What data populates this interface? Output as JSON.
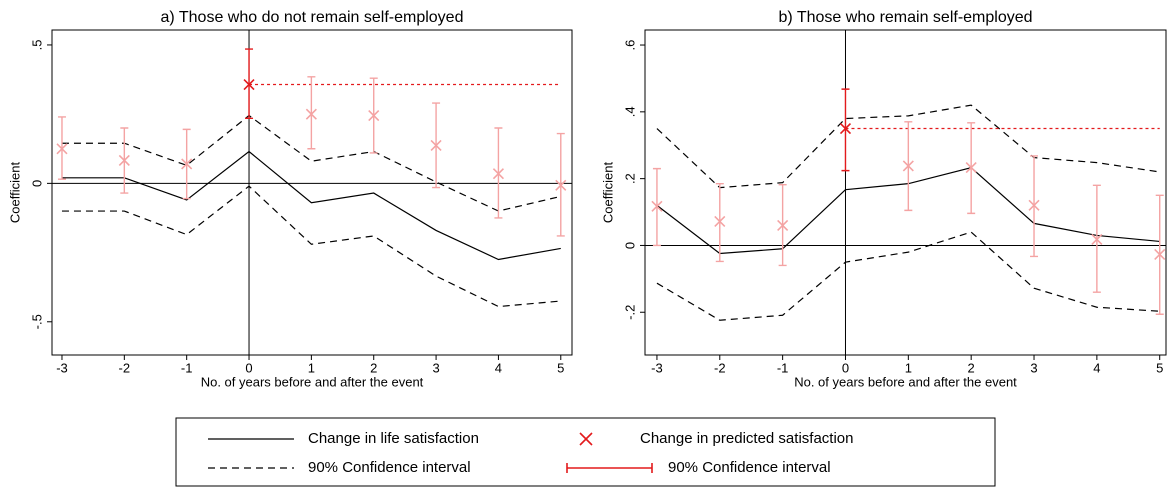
{
  "chart_data": [
    {
      "type": "line",
      "title": "a) Those who do not remain self-employed",
      "xlabel": "No. of years before and after the event",
      "ylabel": "Coefficient",
      "x": [
        -3,
        -2,
        -1,
        0,
        1,
        2,
        3,
        4,
        5
      ],
      "xlim": [
        -3.16,
        5.18
      ],
      "xticks": [
        -3,
        -2,
        -1,
        0,
        1,
        2,
        3,
        4,
        5
      ],
      "ylim": [
        -0.62,
        0.554
      ],
      "yticks": [
        {
          "value": -0.5,
          "label": "-.5"
        },
        0,
        {
          "value": 0.5,
          "label": ".5"
        }
      ],
      "reference_lines": {
        "x": 0,
        "y": 0
      },
      "life_satisfaction": {
        "color": "#000000",
        "dash": "solid",
        "values": [
          0.02,
          0.02,
          -0.06,
          0.115,
          -0.07,
          -0.035,
          -0.17,
          -0.275,
          -0.235
        ]
      },
      "ci_upper": {
        "color": "#000000",
        "dash": "dashed",
        "values": [
          0.145,
          0.145,
          0.065,
          0.245,
          0.08,
          0.115,
          0.005,
          -0.1,
          -0.047
        ]
      },
      "ci_lower": {
        "color": "#000000",
        "dash": "dashed",
        "values": [
          -0.1,
          -0.1,
          -0.185,
          -0.01,
          -0.22,
          -0.19,
          -0.335,
          -0.445,
          -0.425
        ]
      },
      "predicted": {
        "color": "#f4a3a3",
        "event_color": "#e31a1c",
        "values": [
          0.125,
          0.083,
          0.07,
          0.357,
          0.25,
          0.245,
          0.137,
          0.035,
          -0.007
        ],
        "ci_high": [
          0.24,
          0.2,
          0.195,
          0.485,
          0.385,
          0.38,
          0.29,
          0.2,
          0.18
        ],
        "ci_low": [
          0.015,
          -0.035,
          -0.055,
          0.235,
          0.125,
          0.11,
          -0.015,
          -0.125,
          -0.19
        ]
      }
    },
    {
      "type": "line",
      "title": "b) Those who remain self-employed",
      "xlabel": "No. of years before and after the event",
      "ylabel": "Coefficient",
      "x": [
        -3,
        -2,
        -1,
        0,
        1,
        2,
        3,
        4,
        5
      ],
      "xlim": [
        -3.19,
        5.1
      ],
      "xticks": [
        -3,
        -2,
        -1,
        0,
        1,
        2,
        3,
        4,
        5
      ],
      "ylim": [
        -0.328,
        0.645
      ],
      "yticks": [
        {
          "value": -0.2,
          "label": "-.2"
        },
        0,
        {
          "value": 0.2,
          "label": ".2"
        },
        {
          "value": 0.4,
          "label": ".4"
        },
        {
          "value": 0.6,
          "label": ".6"
        }
      ],
      "reference_lines": {
        "x": 0,
        "y": 0
      },
      "life_satisfaction": {
        "color": "#000000",
        "dash": "solid",
        "values": [
          0.12,
          -0.024,
          -0.01,
          0.167,
          0.185,
          0.233,
          0.066,
          0.03,
          0.012
        ]
      },
      "ci_upper": {
        "color": "#000000",
        "dash": "dashed",
        "values": [
          0.35,
          0.173,
          0.188,
          0.38,
          0.388,
          0.42,
          0.263,
          0.248,
          0.22
        ]
      },
      "ci_lower": {
        "color": "#000000",
        "dash": "dashed",
        "values": [
          -0.113,
          -0.224,
          -0.209,
          -0.05,
          -0.02,
          0.04,
          -0.128,
          -0.185,
          -0.197
        ]
      },
      "predicted": {
        "color": "#f4a3a3",
        "event_color": "#e31a1c",
        "values": [
          0.117,
          0.072,
          0.06,
          0.35,
          0.238,
          0.233,
          0.12,
          0.018,
          -0.027
        ],
        "ci_high": [
          0.23,
          0.185,
          0.182,
          0.468,
          0.37,
          0.367,
          0.268,
          0.18,
          0.15
        ],
        "ci_low": [
          0,
          -0.048,
          -0.06,
          0.224,
          0.105,
          0.096,
          -0.033,
          -0.14,
          -0.206
        ]
      }
    }
  ],
  "legend": {
    "entries": [
      {
        "label": "Change in life satisfaction",
        "style": "solid",
        "color": "#000000"
      },
      {
        "label": "Change in predicted satisfaction",
        "style": "cross",
        "color": "#e31a1c"
      },
      {
        "label": "90% Confidence interval",
        "style": "dashed",
        "color": "#000000"
      },
      {
        "label": "90% Confidence interval",
        "style": "errorbar",
        "color": "#e31a1c"
      }
    ]
  }
}
